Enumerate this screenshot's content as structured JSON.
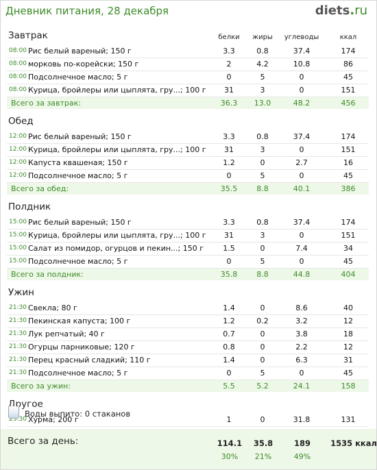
{
  "header": {
    "title": "Дневник питания, 28 декабря",
    "logo_main": "diets",
    "logo_dot": ".",
    "logo_tld": "ru"
  },
  "columns": {
    "protein": "белки",
    "fat": "жиры",
    "carbs": "углеводы",
    "kcal": "ккал"
  },
  "sections": [
    {
      "title": "Завтрак",
      "items": [
        {
          "time": "08:00",
          "food": "Рис белый вареный; 150 г",
          "p": "3.3",
          "f": "0.8",
          "c": "37.4",
          "k": "174"
        },
        {
          "time": "08:00",
          "food": "морковь по-корейски; 150 г",
          "p": "2",
          "f": "4.2",
          "c": "10.8",
          "k": "86"
        },
        {
          "time": "08:00",
          "food": "Подсолнечное масло; 5 г",
          "p": "0",
          "f": "5",
          "c": "0",
          "k": "45"
        },
        {
          "time": "08:00",
          "food": "Курица, бройлеры или цыплята, гру...; 100 г",
          "p": "31",
          "f": "3",
          "c": "0",
          "k": "151"
        }
      ],
      "total": {
        "label": "Всего за завтрак:",
        "p": "36.3",
        "f": "13.0",
        "c": "48.2",
        "k": "456"
      }
    },
    {
      "title": "Обед",
      "items": [
        {
          "time": "12:00",
          "food": "Рис белый вареный; 150 г",
          "p": "3.3",
          "f": "0.8",
          "c": "37.4",
          "k": "174"
        },
        {
          "time": "12:00",
          "food": "Курица, бройлеры или цыплята, гру...; 100 г",
          "p": "31",
          "f": "3",
          "c": "0",
          "k": "151"
        },
        {
          "time": "12:00",
          "food": "Капуста квашеная; 150 г",
          "p": "1.2",
          "f": "0",
          "c": "2.7",
          "k": "16"
        },
        {
          "time": "12:00",
          "food": "Подсолнечное масло; 5 г",
          "p": "0",
          "f": "5",
          "c": "0",
          "k": "45"
        }
      ],
      "total": {
        "label": "Всего за обед:",
        "p": "35.5",
        "f": "8.8",
        "c": "40.1",
        "k": "386"
      }
    },
    {
      "title": "Полдник",
      "items": [
        {
          "time": "15:00",
          "food": "Рис белый вареный; 150 г",
          "p": "3.3",
          "f": "0.8",
          "c": "37.4",
          "k": "174"
        },
        {
          "time": "15:00",
          "food": "Курица, бройлеры или цыплята, гру...; 100 г",
          "p": "31",
          "f": "3",
          "c": "0",
          "k": "151"
        },
        {
          "time": "15:00",
          "food": "Салат из помидор, огурцов и пекин...; 150 г",
          "p": "1.5",
          "f": "0",
          "c": "7.4",
          "k": "34"
        },
        {
          "time": "15:00",
          "food": "Подсолнечное масло; 5 г",
          "p": "0",
          "f": "5",
          "c": "0",
          "k": "45"
        }
      ],
      "total": {
        "label": "Всего за полдник:",
        "p": "35.8",
        "f": "8.8",
        "c": "44.8",
        "k": "404"
      }
    },
    {
      "title": "Ужин",
      "items": [
        {
          "time": "21:30",
          "food": "Свекла; 80 г",
          "p": "1.4",
          "f": "0",
          "c": "8.6",
          "k": "40"
        },
        {
          "time": "21:30",
          "food": "Пекинская капуста; 100 г",
          "p": "1.2",
          "f": "0.2",
          "c": "3.2",
          "k": "12"
        },
        {
          "time": "21:30",
          "food": "Лук репчатый; 40 г",
          "p": "0.7",
          "f": "0",
          "c": "3.8",
          "k": "18"
        },
        {
          "time": "21:30",
          "food": "Огурцы парниковые; 120 г",
          "p": "0.8",
          "f": "0",
          "c": "2.2",
          "k": "12"
        },
        {
          "time": "21:30",
          "food": "Перец красный сладкий; 110 г",
          "p": "1.4",
          "f": "0",
          "c": "6.3",
          "k": "31"
        },
        {
          "time": "21:30",
          "food": "Подсолнечное масло; 5 г",
          "p": "0",
          "f": "5",
          "c": "0",
          "k": "45"
        }
      ],
      "total": {
        "label": "Всего за ужин:",
        "p": "5.5",
        "f": "5.2",
        "c": "24.1",
        "k": "158"
      }
    },
    {
      "title": "Другое",
      "items": [
        {
          "time": "23:30",
          "food": "Хурма; 200 г",
          "p": "1",
          "f": "0",
          "c": "31.8",
          "k": "131"
        }
      ]
    }
  ],
  "water": {
    "text": "Воды выпито: 0 стаканов",
    "icon": "glass-icon"
  },
  "day_total": {
    "label": "Всего за день:",
    "p": "114.1",
    "f": "35.8",
    "c": "189",
    "k": "1535 ккал",
    "p_pct": "30%",
    "f_pct": "21%",
    "c_pct": "49%"
  },
  "colors": {
    "accent": "#3c8a28",
    "total_bg": "#eef8e8",
    "row_border": "#e6e6e6"
  }
}
